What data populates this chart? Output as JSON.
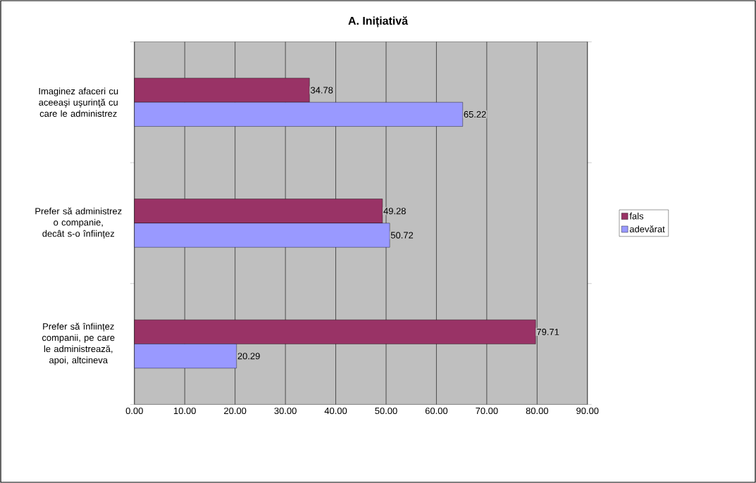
{
  "chart_data": {
    "type": "bar",
    "orientation": "horizontal",
    "title": "A. Inițiativă",
    "categories": [
      "Imaginez afaceri cu aceeaşi uşurinţă cu care le administrez",
      "Prefer să administrez o companie, decât s-o înființez",
      "Prefer să înființez companii, pe care le administrează, apoi, altcineva"
    ],
    "series": [
      {
        "name": "fals",
        "color": "#993366",
        "values": [
          34.78,
          49.28,
          79.71
        ],
        "value_labels": [
          "34.78",
          "49.28",
          "79.71"
        ]
      },
      {
        "name": "adevărat",
        "color": "#9999ff",
        "values": [
          65.22,
          50.72,
          20.29
        ],
        "value_labels": [
          "65.22",
          "50.72",
          "20.29"
        ]
      }
    ],
    "xlim": [
      0,
      90
    ],
    "xticks": [
      {
        "value": 0,
        "label": "0.00"
      },
      {
        "value": 10,
        "label": "10.00"
      },
      {
        "value": 20,
        "label": "20.00"
      },
      {
        "value": 30,
        "label": "30.00"
      },
      {
        "value": 40,
        "label": "40.00"
      },
      {
        "value": 50,
        "label": "50.00"
      },
      {
        "value": 60,
        "label": "60.00"
      },
      {
        "value": 70,
        "label": "70.00"
      },
      {
        "value": 80,
        "label": "80.00"
      },
      {
        "value": 90,
        "label": "90.00"
      }
    ],
    "grid": "x",
    "legend": "right"
  }
}
